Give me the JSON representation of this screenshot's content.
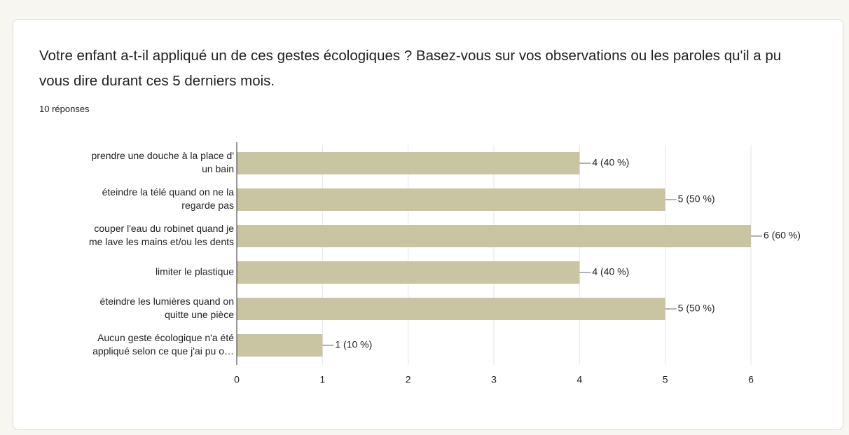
{
  "title": "Votre enfant a-t-il appliqué un de ces gestes écologiques ? Basez-vous sur vos observations ou les paroles qu'il a pu vous dire durant ces 5 derniers mois.",
  "response_count": "10 réponses",
  "chart_data": {
    "type": "bar",
    "orientation": "horizontal",
    "categories": [
      [
        "prendre une douche à la place d'",
        "un bain"
      ],
      [
        "éteindre la télé quand on ne la",
        "regarde pas"
      ],
      [
        "couper l'eau du robinet quand je",
        "me lave les mains et/ou les dents"
      ],
      [
        "limiter le plastique"
      ],
      [
        "éteindre les lumières quand on",
        "quitte une pièce"
      ],
      [
        "Aucun geste écologique n'a été",
        "appliqué selon ce que j'ai pu o…"
      ]
    ],
    "values": [
      4,
      5,
      6,
      4,
      5,
      1
    ],
    "value_labels": [
      "4 (40 %)",
      "5 (50 %)",
      "6 (60 %)",
      "4 (40 %)",
      "5 (50 %)",
      "1 (10 %)"
    ],
    "color": "#c9c4a1",
    "xlim": [
      0,
      6
    ],
    "xticks": [
      0,
      1,
      2,
      3,
      4,
      5,
      6
    ],
    "grid": true
  }
}
